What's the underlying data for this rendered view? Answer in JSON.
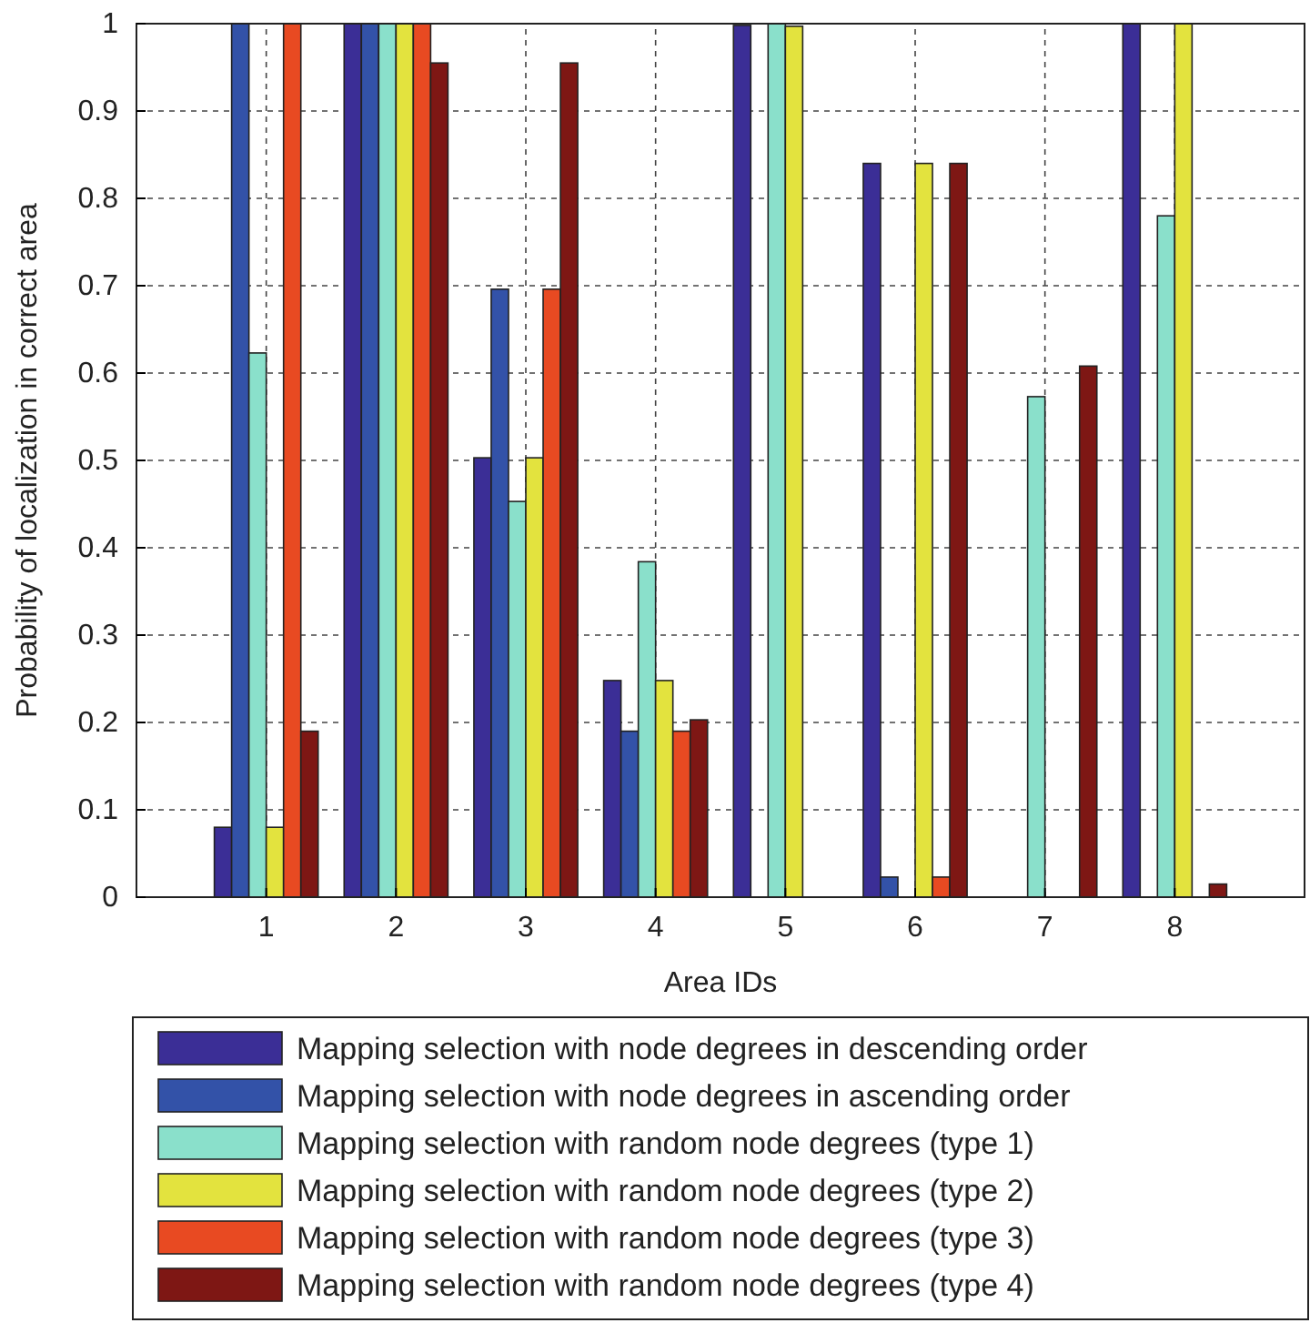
{
  "chart_data": {
    "type": "bar",
    "xlabel": "Area IDs",
    "ylabel": "Probability of localization in correct area",
    "categories": [
      "1",
      "2",
      "3",
      "4",
      "5",
      "6",
      "7",
      "8"
    ],
    "series": [
      {
        "name": "Mapping selection with node degrees in descending order",
        "color": "#3b2e96",
        "values": [
          0.08,
          1,
          0.503,
          0.248,
          0.998,
          0.84,
          0,
          1
        ]
      },
      {
        "name": "Mapping selection with node degrees in ascending order",
        "color": "#3352a8",
        "values": [
          1,
          1,
          0.696,
          0.19,
          0,
          0.023,
          0,
          0
        ]
      },
      {
        "name": "Mapping selection with random node degrees (type 1)",
        "color": "#8ae0cb",
        "values": [
          0.623,
          1,
          0.453,
          0.384,
          1,
          0,
          0.573,
          0.78
        ]
      },
      {
        "name": "Mapping selection with random node degrees (type 2)",
        "color": "#e3e33e",
        "values": [
          0.08,
          1,
          0.503,
          0.248,
          0.997,
          0.84,
          0,
          1
        ]
      },
      {
        "name": "Mapping selection with random node degrees (type 3)",
        "color": "#e84a22",
        "values": [
          1,
          1,
          0.696,
          0.19,
          0,
          0.023,
          0,
          0
        ]
      },
      {
        "name": "Mapping selection with random node degrees (type 4)",
        "color": "#7e1714",
        "values": [
          0.19,
          0.955,
          0.955,
          0.203,
          0,
          0.84,
          0.608,
          0.015
        ]
      }
    ],
    "ylim": [
      0,
      1
    ],
    "yticks": [
      0,
      0.1,
      0.2,
      0.3,
      0.4,
      0.5,
      0.6,
      0.7,
      0.8,
      0.9,
      1
    ],
    "grid": true,
    "legend": "bottom"
  }
}
